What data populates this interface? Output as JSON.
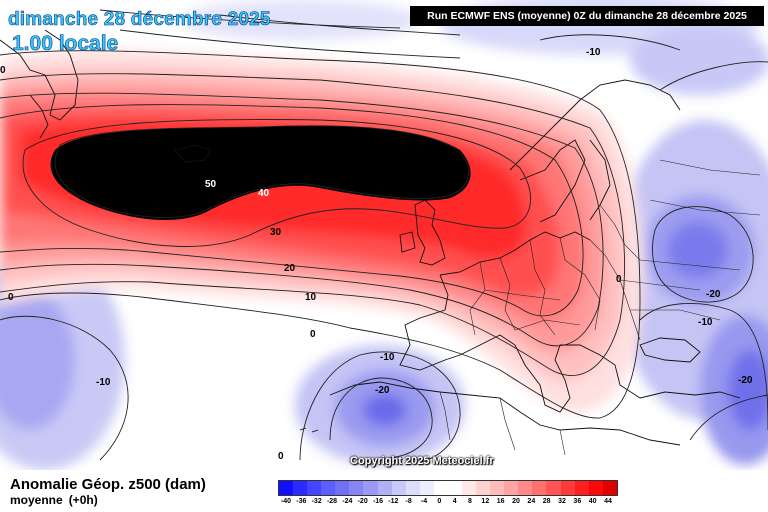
{
  "header": {
    "date": "dimanche 28 décembre 2025",
    "time": "1.00 locale",
    "run": "Run ECMWF ENS (moyenne) 0Z du dimanche 28 décembre 2025"
  },
  "map": {
    "contour_labels": [
      {
        "id": "c50",
        "text": "50"
      },
      {
        "id": "c40",
        "text": "40"
      },
      {
        "id": "c30",
        "text": "30"
      },
      {
        "id": "c20",
        "text": "20"
      },
      {
        "id": "c10",
        "text": "10"
      },
      {
        "id": "c0a",
        "text": "0"
      },
      {
        "id": "c0b",
        "text": "0"
      },
      {
        "id": "c0c",
        "text": "0"
      },
      {
        "id": "c0d",
        "text": "0"
      },
      {
        "id": "cm10a",
        "text": "-10"
      },
      {
        "id": "cm10b",
        "text": "-10"
      },
      {
        "id": "cm10c",
        "text": "-10"
      },
      {
        "id": "cm10d",
        "text": "-10"
      },
      {
        "id": "cm20a",
        "text": "-20"
      },
      {
        "id": "cm20b",
        "text": "-20"
      },
      {
        "id": "cm20c",
        "text": "-20"
      },
      {
        "id": "c0e",
        "text": "0"
      }
    ]
  },
  "copyright": "Copyright 2025 Meteociel.fr",
  "footer": {
    "field": "Anomalie Géop. z500 (dam)",
    "mode": "moyenne",
    "lead": "(+0h)"
  },
  "legend": {
    "colors": [
      "#1010ff",
      "#2b2bff",
      "#4545ff",
      "#5c5cff",
      "#7070f5",
      "#8585f5",
      "#9a9af5",
      "#b0b0f7",
      "#c8c8f9",
      "#dcdcfb",
      "#eeeefd",
      "#ffffff",
      "#ffffff",
      "#ffe8e8",
      "#ffd2d2",
      "#ffbcbc",
      "#ffa3a3",
      "#ff8a8a",
      "#ff7070",
      "#ff5555",
      "#ff3a3a",
      "#ff1f1f",
      "#f80a0a",
      "#e00000"
    ],
    "ticks": [
      "-40",
      "-36",
      "-32",
      "-28",
      "-24",
      "-20",
      "-16",
      "-12",
      "-8",
      "-4",
      "0",
      "4",
      "8",
      "12",
      "16",
      "20",
      "24",
      "28",
      "32",
      "36",
      "40",
      "44"
    ]
  }
}
